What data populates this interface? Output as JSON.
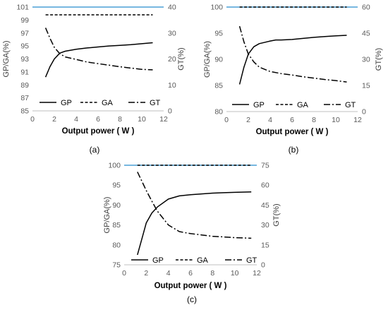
{
  "chart_data": [
    {
      "type": "line",
      "panel": "(a)",
      "xlabel": "Output power ( W )",
      "ylabel": "GP/GA(%)",
      "y2label": "GT(%)",
      "xlim": [
        0,
        12
      ],
      "xticks": [
        "0",
        "2",
        "4",
        "6",
        "8",
        "10",
        "12"
      ],
      "ylim": [
        85,
        101
      ],
      "yticks": [
        "85",
        "87",
        "89",
        "91",
        "93",
        "95",
        "97",
        "99",
        "101"
      ],
      "y2lim": [
        0,
        40
      ],
      "y2ticks": [
        "0",
        "10",
        "20",
        "30",
        "40"
      ],
      "legend_position": "bottom",
      "series": [
        {
          "name": "GP",
          "axis": "left",
          "style": "solid",
          "x": [
            1.2,
            1.6,
            2.0,
            2.5,
            3.0,
            4.0,
            5.0,
            6.0,
            7.0,
            8.0,
            9.0,
            10.0,
            11.0
          ],
          "y": [
            90.2,
            91.8,
            93.0,
            93.9,
            94.2,
            94.5,
            94.7,
            94.85,
            95.0,
            95.1,
            95.2,
            95.35,
            95.5
          ]
        },
        {
          "name": "GA",
          "axis": "left",
          "style": "dashed",
          "x": [
            1.2,
            11.0
          ],
          "y": [
            99.8,
            99.8
          ]
        },
        {
          "name": "GT",
          "axis": "right",
          "style": "dashdot",
          "x": [
            1.2,
            1.6,
            2.0,
            2.5,
            3.0,
            4.0,
            5.0,
            6.0,
            7.0,
            8.0,
            9.0,
            10.0,
            11.0
          ],
          "y": [
            32.0,
            28.0,
            24.5,
            22.0,
            20.8,
            19.8,
            18.8,
            18.2,
            17.6,
            17.0,
            16.5,
            16.0,
            15.8
          ]
        }
      ]
    },
    {
      "type": "line",
      "panel": "(b)",
      "xlabel": "Output power ( W )",
      "ylabel": "GP/GA(%)",
      "y2label": "GT(%)",
      "xlim": [
        0,
        12
      ],
      "xticks": [
        "0",
        "2",
        "4",
        "6",
        "8",
        "10",
        "12"
      ],
      "ylim": [
        80,
        100
      ],
      "yticks": [
        "80",
        "85",
        "90",
        "95",
        "100"
      ],
      "y2lim": [
        0,
        60
      ],
      "y2ticks": [
        "0",
        "15",
        "30",
        "45",
        "60"
      ],
      "legend_position": "bottom",
      "series": [
        {
          "name": "GP",
          "axis": "left",
          "style": "solid",
          "x": [
            1.2,
            1.6,
            2.0,
            2.5,
            3.0,
            4.0,
            4.5,
            5.0,
            6.0,
            7.0,
            8.0,
            9.0,
            10.0,
            11.0
          ],
          "y": [
            85.2,
            88.5,
            91.0,
            92.4,
            93.0,
            93.5,
            93.7,
            93.7,
            93.8,
            94.0,
            94.2,
            94.35,
            94.5,
            94.6
          ]
        },
        {
          "name": "GA",
          "axis": "left",
          "style": "dashed",
          "x": [
            1.2,
            11.0
          ],
          "y": [
            100.0,
            100.0
          ]
        },
        {
          "name": "GT",
          "axis": "right",
          "style": "dashdot",
          "x": [
            1.2,
            1.6,
            2.0,
            2.5,
            3.0,
            4.0,
            5.0,
            6.0,
            7.0,
            8.0,
            9.0,
            10.0,
            11.0
          ],
          "y": [
            49.0,
            40.0,
            33.0,
            28.5,
            25.5,
            23.0,
            21.8,
            21.0,
            20.0,
            19.2,
            18.4,
            17.8,
            17.0
          ]
        }
      ]
    },
    {
      "type": "line",
      "panel": "(c)",
      "xlabel": "Output power ( W )",
      "ylabel": "GP/GA(%)",
      "y2label": "GT(%)",
      "xlim": [
        0,
        12
      ],
      "xticks": [
        "0",
        "2",
        "4",
        "6",
        "8",
        "10",
        "12"
      ],
      "ylim": [
        75,
        100
      ],
      "yticks": [
        "75",
        "80",
        "85",
        "90",
        "95",
        "100"
      ],
      "y2lim": [
        0,
        75
      ],
      "y2ticks": [
        "0",
        "15",
        "30",
        "45",
        "60",
        "75"
      ],
      "legend_position": "bottom",
      "series": [
        {
          "name": "GP",
          "axis": "left",
          "style": "solid",
          "x": [
            1.2,
            1.6,
            2.0,
            2.5,
            3.0,
            4.0,
            5.0,
            6.0,
            7.0,
            8.0,
            9.0,
            10.0,
            11.5
          ],
          "y": [
            77.5,
            81.5,
            85.5,
            88.0,
            89.5,
            91.5,
            92.3,
            92.6,
            92.8,
            93.0,
            93.1,
            93.2,
            93.3
          ]
        },
        {
          "name": "GA",
          "axis": "left",
          "style": "dashed",
          "x": [
            1.2,
            11.5
          ],
          "y": [
            100.0,
            100.0
          ]
        },
        {
          "name": "GT",
          "axis": "right",
          "style": "dashdot",
          "x": [
            1.2,
            1.6,
            2.0,
            2.5,
            3.0,
            4.0,
            5.0,
            6.0,
            7.0,
            8.0,
            9.0,
            10.0,
            11.5
          ],
          "y": [
            70.0,
            63.0,
            56.0,
            48.0,
            40.5,
            30.0,
            25.0,
            23.5,
            22.5,
            21.5,
            21.0,
            20.5,
            20.0
          ]
        }
      ]
    }
  ],
  "colors": {
    "top_axis_line": "#4a9fd5",
    "series": "#000000",
    "axis": "#bfbfbf"
  }
}
